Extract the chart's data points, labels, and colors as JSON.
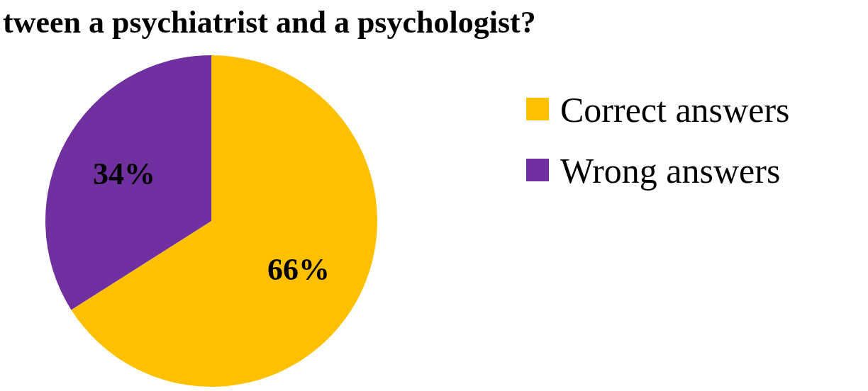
{
  "chart_data": {
    "type": "pie",
    "title": "tween a psychiatrist and a psychologist?",
    "categories": [
      "Correct answers",
      "Wrong answers"
    ],
    "values": [
      66,
      34
    ],
    "colors": [
      "#ffc000",
      "#7030a0"
    ],
    "value_labels": [
      "66%",
      "34%"
    ],
    "legend": "right"
  }
}
